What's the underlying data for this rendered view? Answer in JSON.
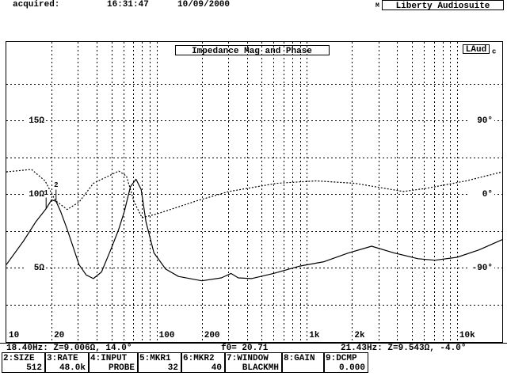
{
  "header": {
    "label": "acquired:",
    "time": "16:31:47",
    "date": "10/09/2000",
    "mode": "M",
    "app": "Liberty Audiosuite"
  },
  "chart_data": {
    "type": "line",
    "title": "Impedance Mag and Phase",
    "badge": "LAud",
    "badge_suffix": "c",
    "xlim": [
      10,
      20000
    ],
    "log_x": true,
    "xticks": [
      10,
      20,
      100,
      200,
      {
        "value": 1000,
        "label": "1k"
      },
      {
        "value": 2000,
        "label": "2k"
      },
      {
        "value": 10000,
        "label": "10k"
      }
    ],
    "xgrid": [
      20,
      30,
      40,
      50,
      60,
      70,
      80,
      90,
      100,
      200,
      300,
      400,
      500,
      600,
      700,
      800,
      900,
      1000,
      2000,
      3000,
      4000,
      5000,
      6000,
      7000,
      8000,
      9000,
      10000
    ],
    "ylim": [
      0,
      20
    ],
    "yticks": [
      {
        "value": 15,
        "label": "15Ω"
      },
      {
        "value": 10,
        "label": "10Ω"
      },
      {
        "value": 5,
        "label": "5Ω"
      }
    ],
    "ygrid": [
      2.5,
      5,
      7.5,
      10,
      12.5,
      15,
      17.5
    ],
    "y2lim": [
      -180,
      180
    ],
    "y2ticks": [
      {
        "value": 90,
        "label": "90°"
      },
      {
        "value": 0,
        "label": "0°"
      },
      {
        "value": -90,
        "label": "-90°"
      }
    ],
    "series": [
      {
        "color": "#000000",
        "dash": false,
        "x": [
          10,
          13,
          15.7,
          18.4,
          20,
          21.4,
          23,
          25.4,
          30.5,
          34,
          38,
          43,
          49.5,
          56,
          61,
          67,
          73,
          79,
          85,
          96,
          115,
          140,
          200,
          270,
          313,
          350,
          428,
          600,
          900,
          1300,
          1900,
          2700,
          3800,
          5500,
          7130,
          10000,
          14000,
          20000
        ],
        "values": [
          5.2,
          6.8,
          8.1,
          9.0,
          9.6,
          9.5,
          8.8,
          7.6,
          5.2,
          4.5,
          4.25,
          4.7,
          6.2,
          7.6,
          8.8,
          10.5,
          11.0,
          10.3,
          8.1,
          6.0,
          4.9,
          4.4,
          4.1,
          4.3,
          4.6,
          4.3,
          4.25,
          4.6,
          5.1,
          5.4,
          6.0,
          6.45,
          6.0,
          5.6,
          5.5,
          5.7,
          6.2,
          6.9
        ]
      },
      {
        "color": "#000000",
        "dash": true,
        "axis": "y2",
        "x": [
          10,
          14.7,
          18.1,
          21.2,
          25.4,
          30.5,
          38,
          56,
          63,
          71,
          80,
          102,
          188,
          303,
          630,
          1150,
          2100,
          4400,
          6300,
          11500,
          20000
        ],
        "values": [
          27,
          30,
          16,
          -8,
          -19,
          -10,
          13,
          28,
          22,
          -10,
          -29,
          -24,
          -8,
          3,
          13,
          16,
          13,
          3,
          7,
          16,
          27
        ]
      }
    ],
    "markers": [
      {
        "label": "1",
        "x": 18.4,
        "y": 9.006
      },
      {
        "label": "2",
        "x": 21.43,
        "y": 9.543
      }
    ]
  },
  "status": {
    "left": "18.40Hz: Z=9.006Ω, 14.0°",
    "center": "f0= 20.71",
    "right": "21.43Hz: Z=9.543Ω, -4.0°"
  },
  "keys": [
    {
      "key": "2:SIZE",
      "value": "512"
    },
    {
      "key": "3:RATE",
      "value": "48.0k"
    },
    {
      "key": "4:INPUT",
      "value": "PROBE"
    },
    {
      "key": "5:MKR1",
      "value": "32"
    },
    {
      "key": "6:MKR2",
      "value": "40"
    },
    {
      "key": "7:WINDOW",
      "value": "BLACKMH"
    },
    {
      "key": "8:GAIN"
    },
    {
      "key": "9:DCMP",
      "value": "0.000"
    }
  ]
}
